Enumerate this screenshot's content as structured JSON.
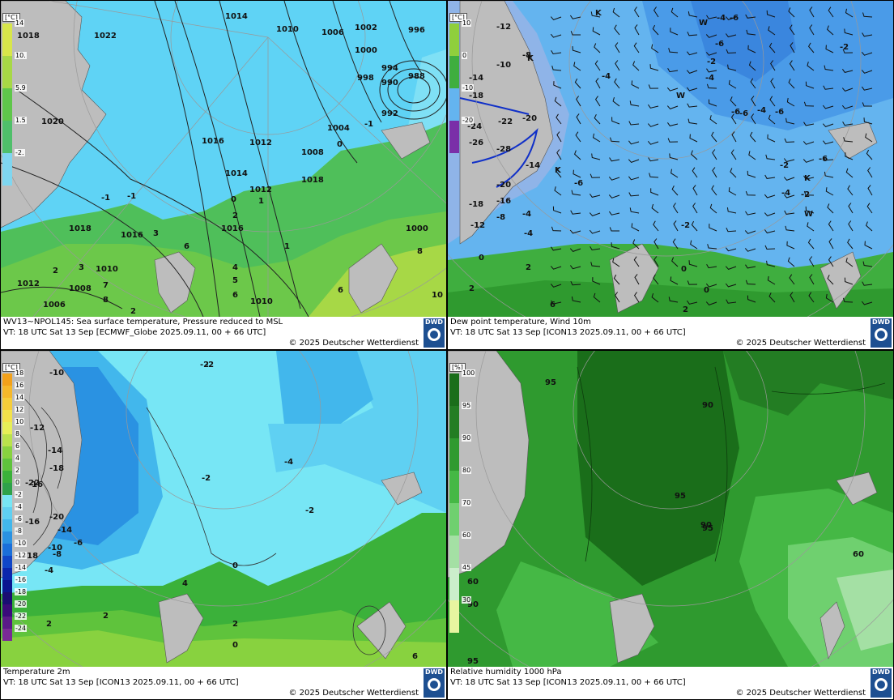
{
  "panels": [
    {
      "line1": "WV13~NPOL145: Sea surface temperature,  Pressure reduced to MSL",
      "line2": "VT: 18 UTC Sat  13 Sep [ECMWF_Globe 2025.09.11, 00 + 66 UTC]",
      "copyright": "© 2025 Deutscher Wetterdienst",
      "logo": "DWD",
      "legend_unit": "[°C]",
      "legend": [
        "14",
        "10.",
        "5.9",
        "1.5",
        "-2."
      ],
      "legend_colors": [
        "#d8e64a",
        "#a7d846",
        "#5fc64a",
        "#4fbf6a",
        "#7fd6f0"
      ],
      "labels": [
        "1018",
        "1022",
        "1014",
        "1010",
        "1006",
        "1002",
        "996",
        "1000",
        "994",
        "990",
        "988",
        "998",
        "992",
        "1020",
        "1016",
        "1012",
        "1004",
        "1008",
        "1018",
        "0",
        "1014",
        "1012",
        "1016",
        "1018",
        "1016",
        "1010",
        "1012",
        "1008",
        "1006",
        "1000",
        "8",
        "10",
        "-1",
        "-1",
        "0",
        "1",
        "2",
        "3",
        "4",
        "5",
        "6",
        "7",
        "8",
        "2",
        "1",
        "2",
        "3",
        "6",
        "6",
        "1010",
        "-1"
      ]
    },
    {
      "line1": "Dew point temperature, Wind 10m",
      "line2": "VT: 18 UTC Sat  13 Sep [ICON13 2025.09.11,  00 + 66 UTC]",
      "copyright": "© 2025 Deutscher Wetterdienst",
      "logo": "DWD",
      "legend_unit": "[°C]",
      "legend": [
        "10",
        "0",
        "-10",
        "-20"
      ],
      "legend_colors": [
        "#8fcf3c",
        "#3fae3f",
        "#64b4ef",
        "#7a2fa8"
      ],
      "labels": [
        "-8",
        "-12",
        "-10",
        "-14",
        "-18",
        "-22",
        "-20",
        "-24",
        "-26",
        "-28",
        "-14",
        "-20",
        "-16",
        "-18",
        "-12",
        "-8",
        "-4",
        "-6",
        "-4",
        "-4",
        "-2",
        "-2",
        "0",
        "2",
        "-6",
        "-6",
        "-6",
        "-2",
        "-2",
        "0",
        "2",
        "-4",
        "-4",
        "-6",
        "-4",
        "-6",
        "-6",
        "-2",
        "-4",
        "0",
        "2",
        "6",
        "K",
        "W",
        "K",
        "K",
        "W",
        "K",
        "W"
      ]
    },
    {
      "line1": "Temperature 2m",
      "line2": "VT: 18 UTC Sat  13 Sep [ICON13 2025.09.11, 00 + 66 UTC]",
      "copyright": "© 2025 Deutscher Wetterdienst",
      "logo": "DWD",
      "legend_unit": "[°C]",
      "legend": [
        "18",
        "16",
        "14",
        "12",
        "10",
        "8",
        "6",
        "4",
        "2",
        "0",
        "-2",
        "-4",
        "-6",
        "-8",
        "-10",
        "-12",
        "-14",
        "-16",
        "-18",
        "-20",
        "-22",
        "-24"
      ],
      "legend_colors": [
        "#f3a11a",
        "#f6b82a",
        "#f6cd3a",
        "#f3e24a",
        "#e6ef57",
        "#b9e24c",
        "#88d23f",
        "#5fc33c",
        "#3bb13a",
        "#2ea24a",
        "#77e6f5",
        "#5fd0f2",
        "#42b7ec",
        "#2a92e2",
        "#1a6fda",
        "#1046c8",
        "#0b26ad",
        "#0a1690",
        "#1a0d72",
        "#3a0a7a",
        "#5a1a88",
        "#7a2a96"
      ],
      "labels": [
        "-10",
        "-12",
        "-14",
        "-18",
        "-20",
        "-22",
        "-18",
        "-14",
        "-16",
        "-16",
        "-10",
        "-8",
        "-6",
        "-4",
        "-2",
        "-2",
        "-4",
        "-2",
        "0",
        "2",
        "2",
        "0",
        "2",
        "4",
        "6",
        "-2"
      ]
    },
    {
      "line1": "Relative humidity 1000 hPa",
      "line2": "VT: 18 UTC Sat  13 Sep [ICON13 2025.09.11, 00 + 66 UTC]",
      "copyright": "© 2025 Deutscher Wetterdienst",
      "logo": "DWD",
      "legend_unit": "[%]",
      "legend": [
        "100",
        "95",
        "90",
        "80",
        "70",
        "60",
        "45",
        "30"
      ],
      "legend_colors": [
        "#1a6e1a",
        "#237d23",
        "#2f9a2f",
        "#45b845",
        "#6fd06f",
        "#a4e0a4",
        "#cbeecb",
        "#e7f5a0"
      ],
      "labels": [
        "95",
        "90",
        "95",
        "95",
        "90",
        "60",
        "60",
        "90",
        "95"
      ]
    }
  ]
}
